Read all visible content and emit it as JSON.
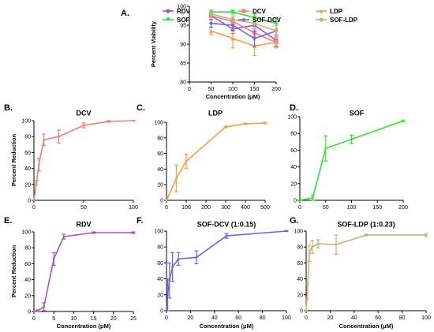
{
  "colors": {
    "RDV": "#9b59c4",
    "DCV": "#f07f7f",
    "LDP": "#f2a04c",
    "SOF": "#2ee62e",
    "SOF-DCV": "#6f63e8",
    "SOF-LDP": "#c4b27c"
  },
  "chart_data": [
    {
      "id": "A",
      "type": "line",
      "letter": "A.",
      "title": "",
      "xlabel": "Concentration (μM)",
      "ylabel": "Percent Viability",
      "xlim": [
        0,
        200
      ],
      "ylim": [
        80,
        100
      ],
      "xticks": [
        0,
        50,
        100,
        150,
        200
      ],
      "yticks": [
        80,
        85,
        90,
        95,
        100
      ],
      "legend": {
        "position": "top",
        "entries": [
          "RDV",
          "DCV",
          "LDP",
          "SOF",
          "SOF-DCV",
          "SOF-LDP"
        ]
      },
      "series": [
        {
          "name": "RDV",
          "x": [
            50,
            100,
            150,
            200
          ],
          "y": [
            97.5,
            94,
            95,
            91
          ],
          "err": [
            1,
            1.2,
            1,
            1.5
          ]
        },
        {
          "name": "DCV",
          "x": [
            50,
            100,
            150,
            200
          ],
          "y": [
            97.5,
            96,
            93,
            90.5
          ],
          "err": [
            1,
            1,
            1,
            1.2
          ]
        },
        {
          "name": "LDP",
          "x": [
            50,
            100,
            150,
            200
          ],
          "y": [
            93.5,
            91.5,
            89.5,
            90.5
          ],
          "err": [
            1,
            2.5,
            2.5,
            1.5
          ]
        },
        {
          "name": "SOF",
          "x": [
            50,
            100,
            150,
            200
          ],
          "y": [
            98.5,
            98.5,
            97,
            95.5
          ],
          "err": [
            0.5,
            0.5,
            1,
            1.5
          ]
        },
        {
          "name": "SOF-DCV",
          "x": [
            50,
            100,
            150,
            200
          ],
          "y": [
            95.5,
            95,
            91.5,
            93.5
          ],
          "err": [
            1,
            1.5,
            2,
            1.5
          ]
        },
        {
          "name": "SOF-LDP",
          "x": [
            50,
            100,
            150,
            200
          ],
          "y": [
            98,
            96.5,
            95.5,
            93.5
          ],
          "err": [
            1,
            1,
            1.5,
            1.5
          ]
        }
      ]
    },
    {
      "id": "B",
      "type": "line",
      "letter": "B.",
      "title": "DCV",
      "xlabel": "",
      "ylabel": "Percent Reduction",
      "xlim": [
        0,
        100
      ],
      "ylim": [
        0,
        100
      ],
      "xticks": [
        0,
        50,
        100
      ],
      "yticks": [
        0,
        20,
        40,
        60,
        80,
        100
      ],
      "series": [
        {
          "name": "DCV",
          "x": [
            0,
            2.5,
            5,
            10,
            25,
            50,
            75,
            100
          ],
          "y": [
            0,
            22,
            45,
            76,
            80,
            94,
            99,
            100
          ],
          "err": [
            0,
            3,
            8,
            7,
            8,
            3,
            1,
            0.5
          ]
        }
      ]
    },
    {
      "id": "C",
      "type": "line",
      "letter": "C.",
      "title": "LDP",
      "xlabel": "",
      "ylabel": "",
      "xlim": [
        0,
        500
      ],
      "ylim": [
        0,
        100
      ],
      "xticks": [
        0,
        100,
        200,
        300,
        400,
        500
      ],
      "yticks": [
        0,
        20,
        40,
        60,
        80,
        100
      ],
      "series": [
        {
          "name": "LDP",
          "x": [
            0,
            50,
            100,
            300,
            400,
            500
          ],
          "y": [
            0,
            28,
            50,
            94,
            98,
            99
          ],
          "err": [
            0,
            17,
            9,
            1,
            1,
            1
          ]
        }
      ]
    },
    {
      "id": "D",
      "type": "line",
      "letter": "D.",
      "title": "SOF",
      "xlabel": "",
      "ylabel": "",
      "xlim": [
        0,
        200
      ],
      "ylim": [
        0,
        100
      ],
      "xticks": [
        0,
        50,
        100,
        150,
        200
      ],
      "yticks": [
        0,
        20,
        40,
        60,
        80,
        100
      ],
      "series": [
        {
          "name": "SOF",
          "x": [
            0,
            25,
            50,
            100,
            200
          ],
          "y": [
            0,
            3,
            62,
            73,
            95
          ],
          "err": [
            0,
            3,
            15,
            5,
            1
          ]
        }
      ]
    },
    {
      "id": "E",
      "type": "line",
      "letter": "E.",
      "title": "RDV",
      "xlabel": "Concentration (μM)",
      "ylabel": "Percent Reduction",
      "xlim": [
        0,
        25
      ],
      "ylim": [
        0,
        100
      ],
      "xticks": [
        0,
        5,
        10,
        15,
        20,
        25
      ],
      "yticks": [
        0,
        20,
        40,
        60,
        80,
        100
      ],
      "series": [
        {
          "name": "RDV",
          "x": [
            0,
            1,
            2.5,
            5,
            7.5,
            15,
            25
          ],
          "y": [
            0,
            1,
            6,
            66,
            94,
            99,
            99
          ],
          "err": [
            0,
            1,
            5,
            8,
            3,
            1,
            1
          ]
        }
      ]
    },
    {
      "id": "F",
      "type": "line",
      "letter": "F.",
      "title": "SOF-DCV (1:0.15)",
      "xlabel": "Concentration (μM)",
      "ylabel": "",
      "xlim": [
        0,
        100
      ],
      "ylim": [
        0,
        100
      ],
      "xticks": [
        0,
        20,
        40,
        60,
        80,
        100
      ],
      "yticks": [
        0,
        20,
        40,
        60,
        80,
        100
      ],
      "series": [
        {
          "name": "SOF-DCV",
          "x": [
            0,
            1,
            2.5,
            5,
            10,
            25,
            50,
            100
          ],
          "y": [
            0,
            20,
            38,
            55,
            65,
            67,
            94,
            100
          ],
          "err": [
            0,
            20,
            22,
            18,
            8,
            8,
            3,
            0.5
          ]
        }
      ]
    },
    {
      "id": "G",
      "type": "line",
      "letter": "G.",
      "title": "SOF-LDP (1:0.23)",
      "xlabel": "Concentration (μM)",
      "ylabel": "",
      "xlim": [
        0,
        100
      ],
      "ylim": [
        0,
        100
      ],
      "xticks": [
        0,
        20,
        40,
        60,
        80,
        100
      ],
      "yticks": [
        0,
        20,
        40,
        60,
        80,
        100
      ],
      "series": [
        {
          "name": "SOF-LDP",
          "x": [
            0,
            1,
            2.5,
            5,
            10,
            25,
            50,
            100
          ],
          "y": [
            0,
            24,
            72,
            80,
            84,
            83,
            95,
            95
          ],
          "err": [
            0,
            10,
            10,
            8,
            5,
            12,
            1,
            2
          ]
        }
      ]
    }
  ]
}
